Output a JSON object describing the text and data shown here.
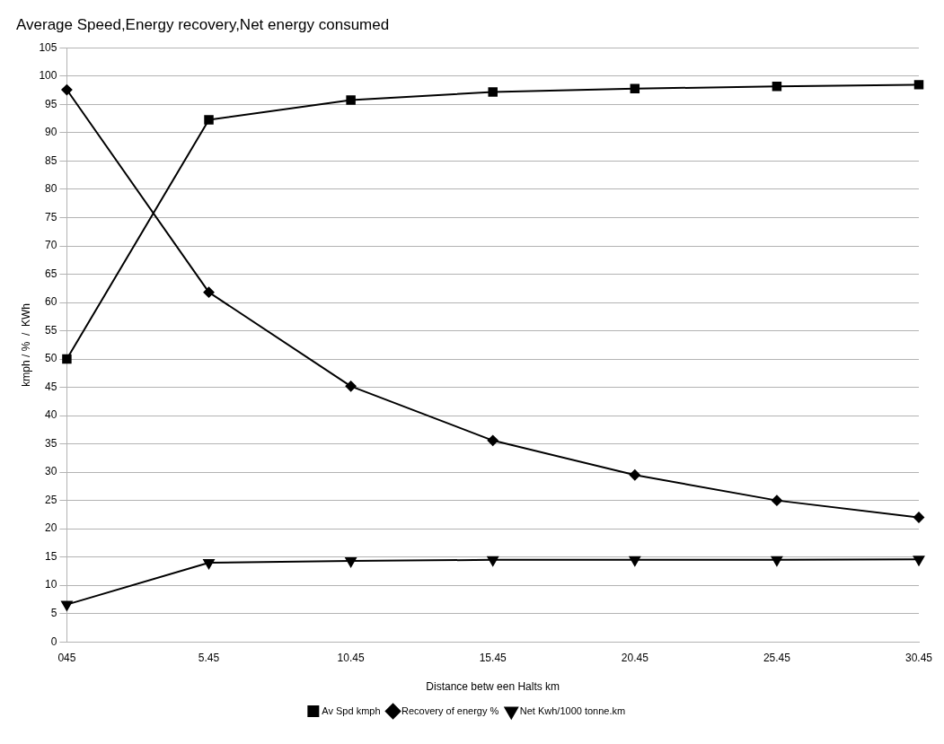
{
  "chart_data": {
    "type": "line",
    "title": "Average Speed,Energy recovery,Net energy consumed",
    "xlabel": "Distance betw een Halts km",
    "ylabel": "kmph / %  /  KWh",
    "categories": [
      "045",
      "5.45",
      "10.45",
      "15.45",
      "20.45",
      "25.45",
      "30.45"
    ],
    "series": [
      {
        "name": "Av Spd kmph",
        "color": "#000000",
        "marker": "square",
        "values": [
          50,
          92.3,
          95.8,
          97.2,
          97.8,
          98.2,
          98.5
        ]
      },
      {
        "name": "Recovery of energy %",
        "color": "#000000",
        "marker": "diamond",
        "values": [
          97.6,
          61.8,
          45.2,
          35.6,
          29.5,
          25,
          22
        ]
      },
      {
        "name": "Net Kwh/1000 tonne.km",
        "color": "#000000",
        "marker": "triangle",
        "values": [
          6.6,
          14,
          14.3,
          14.5,
          14.5,
          14.5,
          14.6
        ]
      }
    ],
    "ylim": [
      0,
      105
    ],
    "yticks": [
      0,
      5,
      10,
      15,
      20,
      25,
      30,
      35,
      40,
      45,
      50,
      55,
      60,
      65,
      70,
      75,
      80,
      85,
      90,
      95,
      100,
      105
    ],
    "grid": "y",
    "legend": "bottom",
    "line_style": "solid"
  }
}
